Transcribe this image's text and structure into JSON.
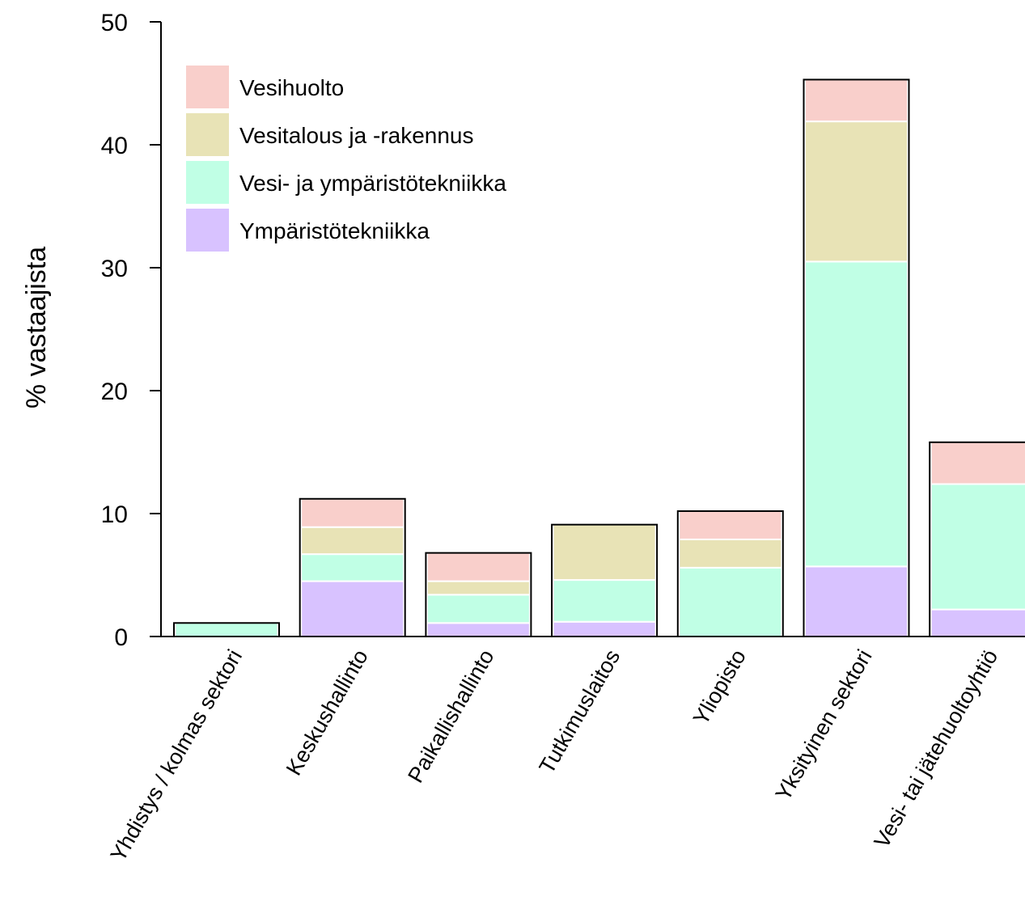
{
  "chart_data": {
    "type": "bar",
    "stacked": true,
    "title": "",
    "xlabel": "",
    "ylabel": "% vastaajista",
    "ylim": [
      0,
      50
    ],
    "yticks": [
      0,
      10,
      20,
      30,
      40,
      50
    ],
    "grid": false,
    "legend_position": "top-left",
    "categories": [
      "Yhdistys / kolmas sektori",
      "Keskushallinto",
      "Paikallishallinto",
      "Tutkimuslaitos",
      "Yliopisto",
      "Yksityinen sektori",
      "Vesi- tai jätehuoltoyhtiö"
    ],
    "series": [
      {
        "name": "Ympäristötekniikka",
        "color": "#d8c2ff",
        "values": [
          0,
          4.5,
          1.1,
          1.2,
          0,
          5.7,
          2.2
        ]
      },
      {
        "name": "Vesi- ja ympäristötekniikka",
        "color": "#c0ffe5",
        "values": [
          1.1,
          2.2,
          2.3,
          3.4,
          5.6,
          24.8,
          10.2
        ]
      },
      {
        "name": "Vesitalous ja -rakennus",
        "color": "#e8e3b6",
        "values": [
          0,
          2.2,
          1.1,
          4.5,
          2.3,
          11.4,
          0
        ]
      },
      {
        "name": "Vesihuolto",
        "color": "#f9cfcb",
        "values": [
          0,
          2.3,
          2.3,
          0,
          2.3,
          3.4,
          3.4
        ]
      }
    ]
  }
}
